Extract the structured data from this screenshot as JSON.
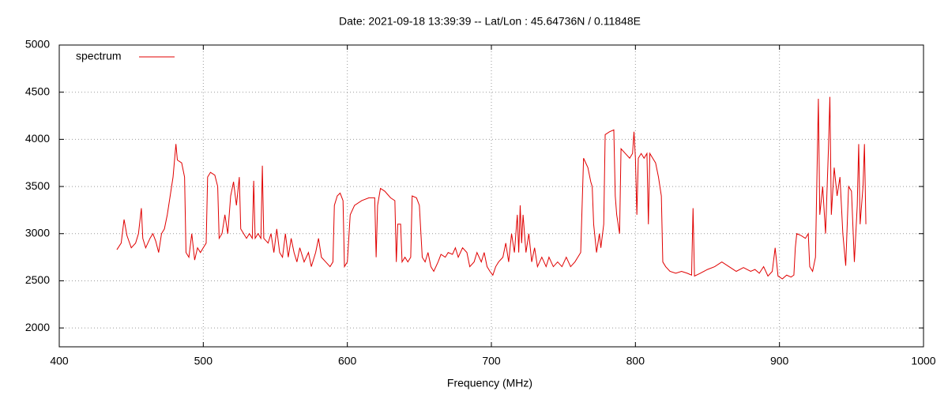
{
  "chart_data": {
    "type": "line",
    "title": "Date: 2021-09-18 13:39:39  --  Lat/Lon : 45.64736N / 0.11848E",
    "xlabel": "Frequency (MHz)",
    "xlim": [
      400,
      1000
    ],
    "xticks": [
      400,
      500,
      600,
      700,
      800,
      900,
      1000
    ],
    "ylim": [
      1800,
      5000
    ],
    "yticks": [
      2000,
      2500,
      3000,
      3500,
      4000,
      4500,
      5000
    ],
    "grid": true,
    "legend": "upper left",
    "x": [
      440,
      443,
      445,
      447,
      450,
      453,
      455,
      457,
      458,
      460,
      463,
      465,
      467,
      469,
      471,
      473,
      475,
      477,
      479,
      481,
      482,
      485,
      487,
      488,
      490,
      492,
      494,
      496,
      498,
      500,
      502,
      503,
      505,
      508,
      510,
      511,
      513,
      515,
      517,
      519,
      521,
      523,
      525,
      526,
      528,
      530,
      532,
      534,
      535,
      536,
      538,
      540,
      541,
      542,
      545,
      547,
      549,
      551,
      553,
      555,
      557,
      559,
      561,
      563,
      565,
      567,
      570,
      573,
      575,
      578,
      580,
      582,
      585,
      588,
      590,
      591,
      593,
      595,
      597,
      598,
      600,
      602,
      605,
      610,
      615,
      619,
      620,
      621,
      623,
      626,
      630,
      633,
      634,
      635,
      637,
      638,
      640,
      642,
      644,
      645,
      648,
      650,
      652,
      654,
      656,
      658,
      660,
      663,
      665,
      668,
      670,
      673,
      675,
      677,
      680,
      683,
      685,
      688,
      690,
      693,
      695,
      697,
      699,
      701,
      703,
      705,
      708,
      710,
      712,
      714,
      716,
      718,
      719,
      720,
      721,
      722,
      724,
      726,
      728,
      730,
      732,
      735,
      738,
      740,
      743,
      746,
      749,
      752,
      755,
      758,
      760,
      762,
      764,
      767,
      769,
      770,
      771,
      773,
      775,
      776,
      778,
      779,
      782,
      785,
      786,
      787,
      789,
      790,
      793,
      796,
      798,
      799,
      800,
      801,
      802,
      804,
      806,
      808,
      809,
      810,
      812,
      814,
      816,
      818,
      819,
      821,
      824,
      828,
      832,
      836,
      839,
      840,
      841,
      845,
      850,
      855,
      860,
      865,
      870,
      875,
      880,
      883,
      886,
      889,
      892,
      895,
      897,
      899,
      902,
      905,
      908,
      910,
      911,
      912,
      915,
      918,
      920,
      921,
      923,
      925,
      927,
      928,
      930,
      932,
      934,
      935,
      936,
      938,
      940,
      942,
      944,
      946,
      948,
      950,
      952,
      954,
      955,
      956,
      958,
      959,
      960
    ],
    "series": [
      {
        "name": "spectrum",
        "color": "#e00000",
        "values": [
          2830,
          2900,
          3150,
          2980,
          2850,
          2900,
          3000,
          3270,
          2950,
          2850,
          2950,
          3000,
          2920,
          2800,
          3000,
          3050,
          3200,
          3400,
          3600,
          3950,
          3780,
          3750,
          3600,
          2800,
          2750,
          3000,
          2720,
          2850,
          2800,
          2850,
          2900,
          3600,
          3650,
          3620,
          3500,
          2950,
          3000,
          3200,
          3000,
          3400,
          3550,
          3300,
          3600,
          3050,
          3000,
          2950,
          3000,
          2950,
          3560,
          2950,
          3000,
          2950,
          3720,
          2950,
          2900,
          3000,
          2800,
          3050,
          2800,
          2750,
          3000,
          2750,
          2950,
          2800,
          2700,
          2850,
          2700,
          2800,
          2650,
          2800,
          2950,
          2750,
          2700,
          2650,
          2700,
          3300,
          3400,
          3430,
          3350,
          2650,
          2700,
          3200,
          3300,
          3350,
          3380,
          3380,
          2750,
          3300,
          3480,
          3450,
          3380,
          3350,
          2700,
          3100,
          3100,
          2700,
          2750,
          2700,
          2750,
          3400,
          3380,
          3300,
          2750,
          2700,
          2800,
          2650,
          2600,
          2700,
          2780,
          2750,
          2800,
          2780,
          2850,
          2750,
          2850,
          2800,
          2650,
          2700,
          2800,
          2700,
          2800,
          2650,
          2600,
          2560,
          2650,
          2700,
          2750,
          2900,
          2700,
          3000,
          2800,
          3200,
          2800,
          3300,
          2900,
          3200,
          2800,
          3000,
          2700,
          2850,
          2650,
          2750,
          2650,
          2750,
          2650,
          2700,
          2650,
          2750,
          2650,
          2700,
          2750,
          2800,
          3800,
          3700,
          3550,
          3500,
          3100,
          2800,
          3000,
          2850,
          3100,
          4050,
          4080,
          4100,
          3400,
          3200,
          3000,
          3900,
          3850,
          3800,
          3850,
          4080,
          3800,
          3200,
          3800,
          3850,
          3800,
          3850,
          3100,
          3850,
          3800,
          3750,
          3600,
          3400,
          2700,
          2650,
          2600,
          2580,
          2600,
          2580,
          2560,
          3270,
          2550,
          2580,
          2620,
          2650,
          2700,
          2650,
          2600,
          2640,
          2600,
          2620,
          2580,
          2650,
          2550,
          2600,
          2850,
          2550,
          2520,
          2560,
          2540,
          2560,
          2850,
          3000,
          2980,
          2950,
          3000,
          2650,
          2600,
          2750,
          4430,
          3200,
          3500,
          3000,
          3900,
          4450,
          3200,
          3700,
          3400,
          3600,
          3000,
          2660,
          3500,
          3450,
          2700,
          3300,
          3950,
          3100,
          3500,
          3950,
          3100
        ]
      }
    ]
  }
}
